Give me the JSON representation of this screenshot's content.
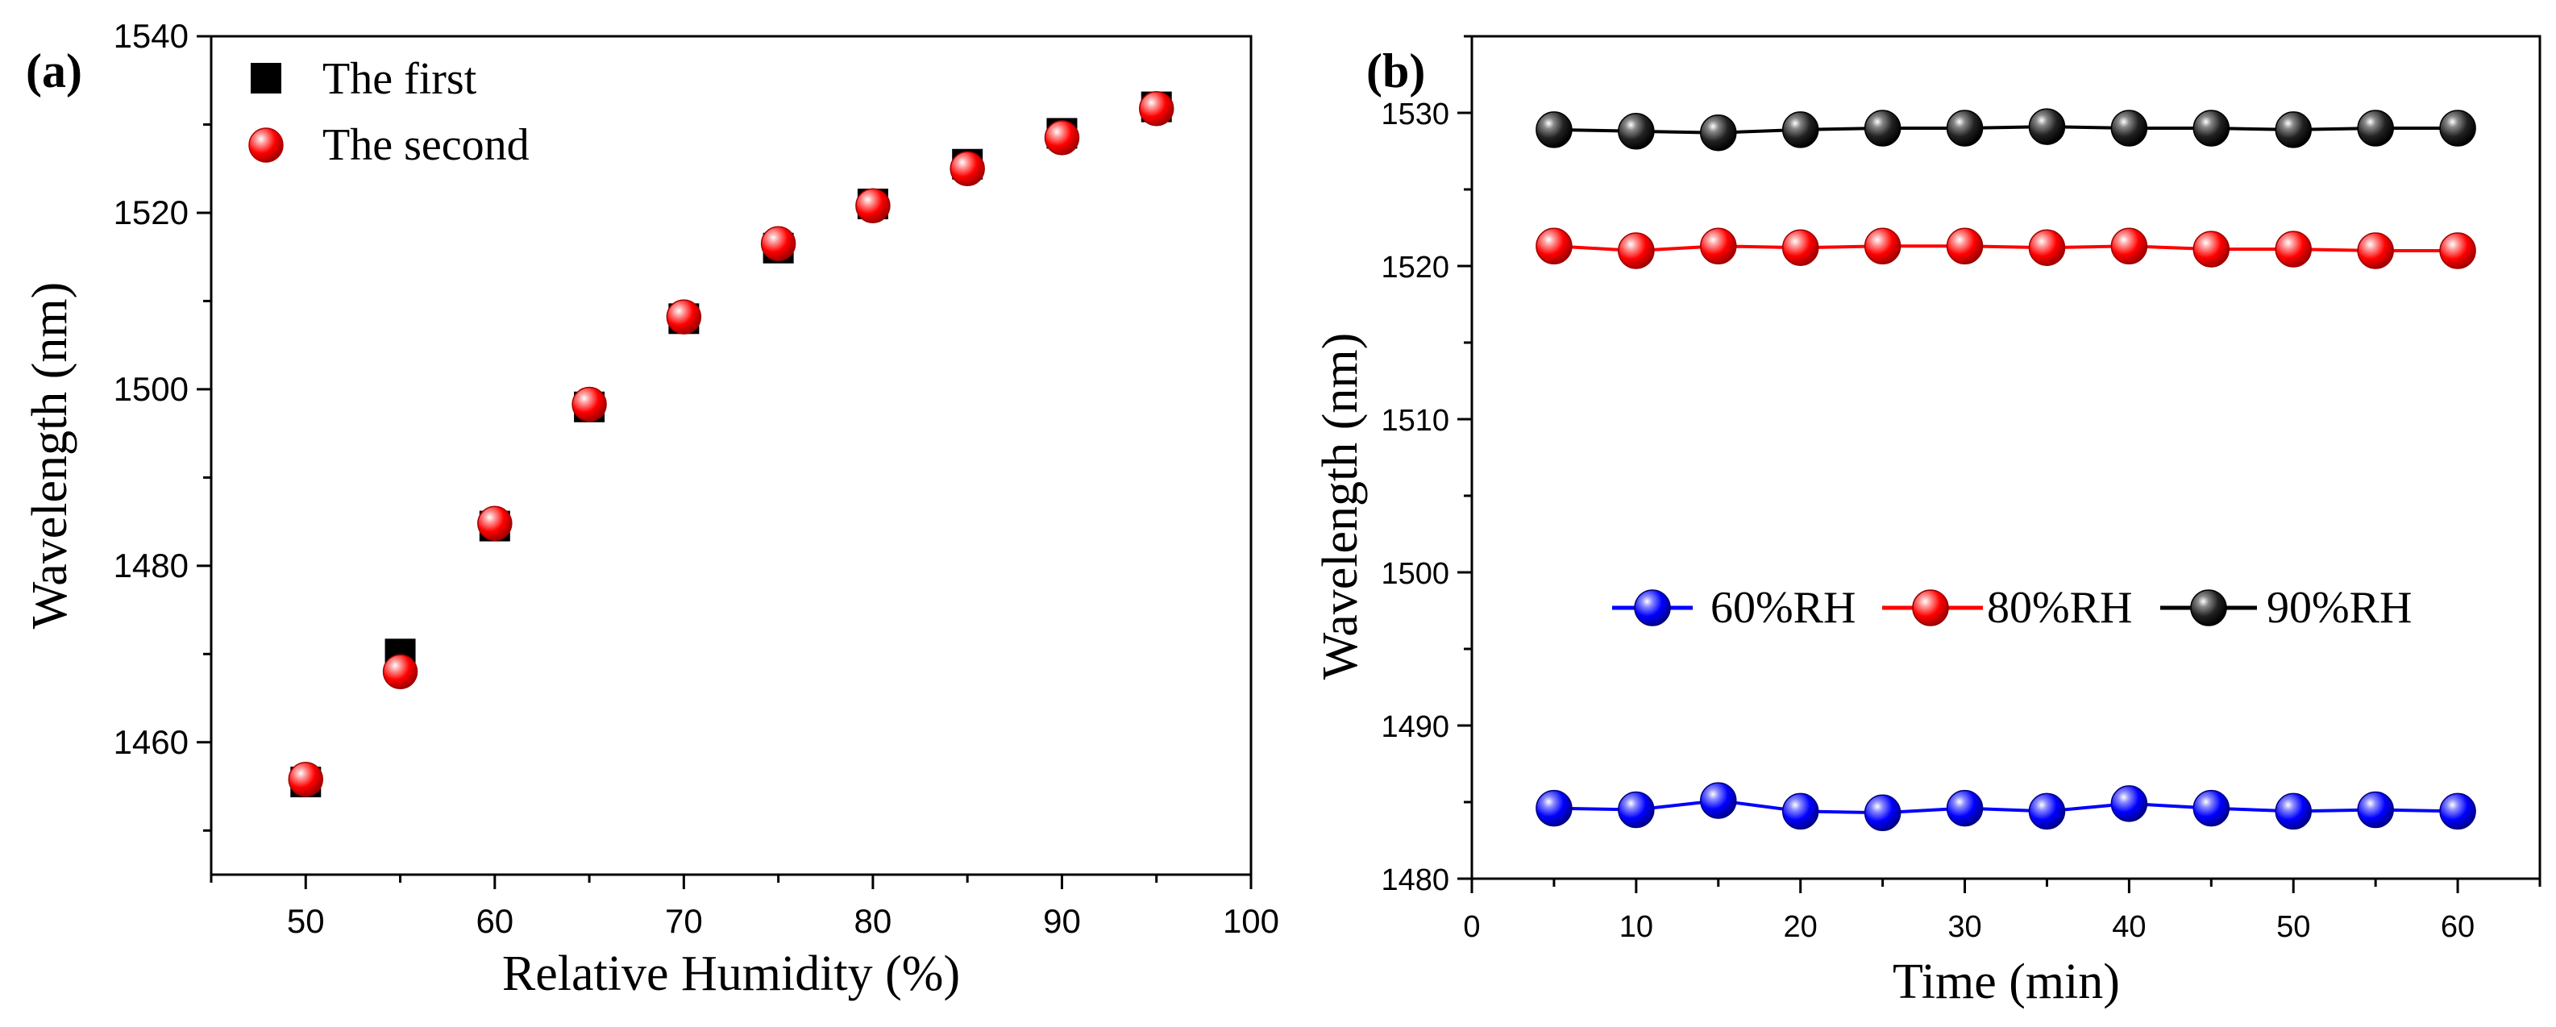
{
  "chart_data": [
    {
      "type": "scatter",
      "panel_label": "(a)",
      "xlabel": "Relative Humidity (%)",
      "ylabel": "Wavelength (nm)",
      "xlim": [
        45,
        100
      ],
      "ylim": [
        1445,
        1540
      ],
      "x_ticks": [
        50,
        60,
        70,
        80,
        90,
        100
      ],
      "x_tick_labels": [
        "50",
        "60",
        "70",
        "80",
        "90",
        "100"
      ],
      "y_ticks": [
        1460,
        1480,
        1500,
        1520,
        1540
      ],
      "y_tick_labels": [
        "1460",
        "1480",
        "1500",
        "1520",
        "1540"
      ],
      "legend_position": "top-left",
      "series": [
        {
          "name": "The first",
          "marker": "square",
          "color": "#000000",
          "x": [
            50,
            55,
            60,
            65,
            70,
            75,
            80,
            85,
            90,
            95
          ],
          "y": [
            1455.5,
            1470.0,
            1484.5,
            1498.0,
            1508.0,
            1516.0,
            1521.0,
            1525.5,
            1529.0,
            1532.0
          ]
        },
        {
          "name": "The second",
          "marker": "circle",
          "color": "#ff0000",
          "x": [
            50,
            55,
            60,
            65,
            70,
            75,
            80,
            85,
            90,
            95
          ],
          "y": [
            1455.8,
            1468.0,
            1484.8,
            1498.3,
            1508.2,
            1516.5,
            1520.8,
            1525.0,
            1528.5,
            1531.8
          ]
        }
      ]
    },
    {
      "type": "line",
      "panel_label": "(b)",
      "xlabel": "Time (min)",
      "ylabel": "Wavelength (nm)",
      "xlim": [
        0,
        65
      ],
      "ylim": [
        1480,
        1535
      ],
      "x_ticks": [
        0,
        10,
        20,
        30,
        40,
        50,
        60
      ],
      "x_tick_labels": [
        "0",
        "10",
        "20",
        "30",
        "40",
        "50",
        "60"
      ],
      "y_ticks": [
        1480,
        1490,
        1500,
        1510,
        1520,
        1530
      ],
      "y_tick_labels": [
        "1480",
        "1490",
        "1500",
        "1510",
        "1520",
        "1530"
      ],
      "legend_position": "center",
      "x": [
        5,
        10,
        15,
        20,
        25,
        30,
        35,
        40,
        45,
        50,
        55,
        60
      ],
      "series": [
        {
          "name": "60%RH",
          "color": "#0000ff",
          "values": [
            1484.6,
            1484.5,
            1485.1,
            1484.4,
            1484.3,
            1484.6,
            1484.4,
            1484.9,
            1484.6,
            1484.4,
            1484.5,
            1484.4
          ]
        },
        {
          "name": "80%RH",
          "color": "#ff0000",
          "values": [
            1521.3,
            1521.0,
            1521.3,
            1521.2,
            1521.3,
            1521.3,
            1521.2,
            1521.3,
            1521.1,
            1521.1,
            1521.0,
            1521.0
          ]
        },
        {
          "name": "90%RH",
          "color": "#000000",
          "values": [
            1528.9,
            1528.8,
            1528.7,
            1528.9,
            1529.0,
            1529.0,
            1529.1,
            1529.0,
            1529.0,
            1528.9,
            1529.0,
            1529.0
          ]
        }
      ]
    }
  ]
}
